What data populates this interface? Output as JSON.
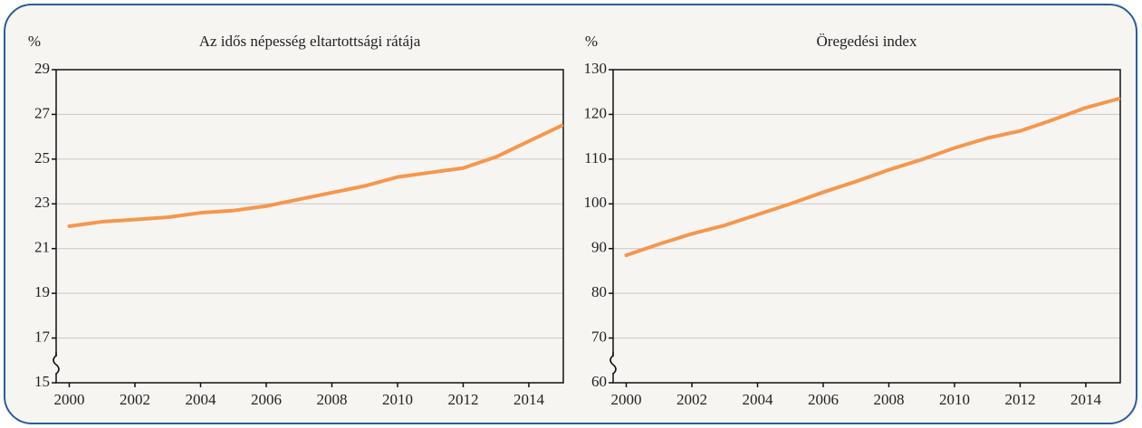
{
  "chart_data": [
    {
      "type": "line",
      "title": "Az idős népesség eltartottsági rátája",
      "y_unit": "%",
      "x": [
        2000,
        2001,
        2002,
        2003,
        2004,
        2005,
        2006,
        2007,
        2008,
        2009,
        2010,
        2011,
        2012,
        2013,
        2014,
        2015
      ],
      "series": [
        {
          "color": "#f5974d",
          "values": [
            22.0,
            22.2,
            22.3,
            22.4,
            22.6,
            22.7,
            22.9,
            23.2,
            23.5,
            23.8,
            24.2,
            24.4,
            24.6,
            25.1,
            25.8,
            26.5
          ]
        }
      ],
      "xlim": [
        1999.6,
        2015.05
      ],
      "xticks": [
        2000,
        2002,
        2004,
        2006,
        2008,
        2010,
        2012,
        2014
      ],
      "ylim": [
        15,
        29
      ],
      "yticks": [
        15,
        17,
        19,
        21,
        23,
        25,
        27,
        29
      ],
      "grid": true
    },
    {
      "type": "line",
      "title": "Öregedési index",
      "y_unit": "%",
      "x": [
        2000,
        2001,
        2002,
        2003,
        2004,
        2005,
        2006,
        2007,
        2008,
        2009,
        2010,
        2011,
        2012,
        2013,
        2014,
        2015
      ],
      "series": [
        {
          "color": "#f5974d",
          "values": [
            88.5,
            91,
            93.3,
            95.2,
            97.6,
            100,
            102.6,
            105,
            107.6,
            109.9,
            112.5,
            114.7,
            116.3,
            118.8,
            121.5,
            123.5
          ]
        }
      ],
      "xlim": [
        1999.6,
        2015.05
      ],
      "xticks": [
        2000,
        2002,
        2004,
        2006,
        2008,
        2010,
        2012,
        2014
      ],
      "ylim": [
        60,
        130
      ],
      "yticks": [
        60,
        70,
        80,
        90,
        100,
        110,
        120,
        130
      ],
      "grid": true
    }
  ]
}
